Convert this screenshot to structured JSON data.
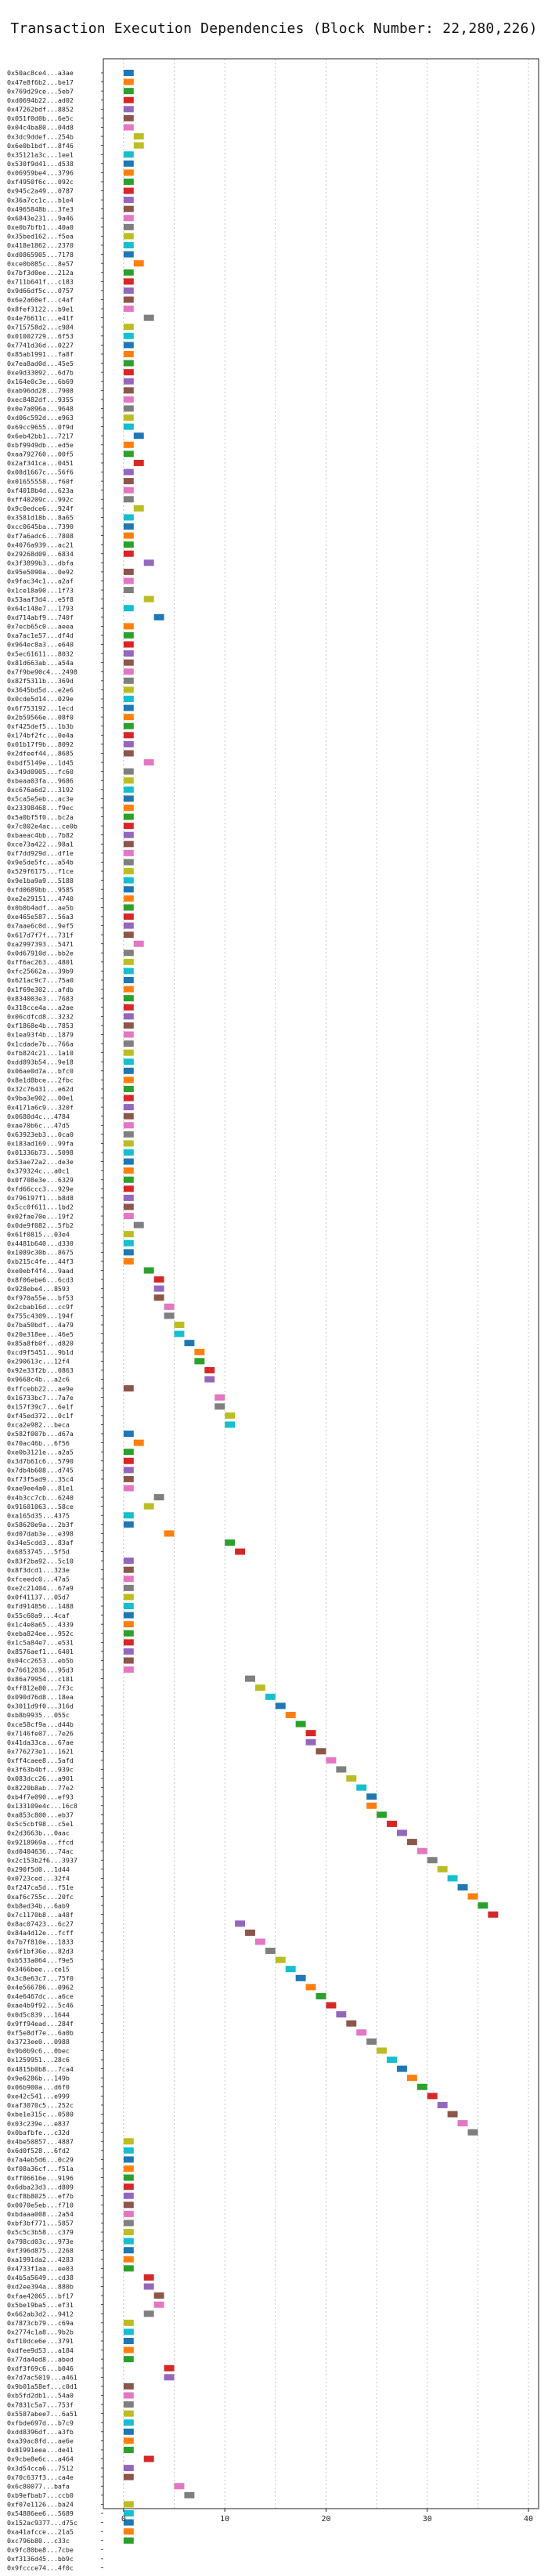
{
  "chart_data": {
    "type": "bar",
    "orientation": "horizontal",
    "title": "Transaction Execution Dependencies (Block Number: 22,280,226)",
    "xlabel": "",
    "ylabel": "",
    "grid": true,
    "xlim": [
      -2,
      41
    ],
    "xticks": [
      0,
      10,
      20,
      30,
      40
    ],
    "bar_width": 1,
    "palette": [
      "#1f77b4",
      "#ff7f0e",
      "#2ca02c",
      "#d62728",
      "#9467bd",
      "#8c564b",
      "#e377c2",
      "#7f7f7f",
      "#bcbd22",
      "#17becf"
    ],
    "transactions": [
      "0x50ac8ce4...a3ae",
      "0x47e8f6b2...be17",
      "0x769d29ce...5eb7",
      "0xd0694b22...ad02",
      "0x47262bdf...8852",
      "0x051f0d0b...6e5c",
      "0x04c4ba80...04d8",
      "0x3dc9ddef...254b",
      "0x6e0b1bdf...8f46",
      "0x35121a3c...1ee1",
      "0x530f9d41...d538",
      "0x06959be4...3796",
      "0xf4950f6c...092c",
      "0x945c2a49...0787",
      "0x36a7cc1c...b1e4",
      "0x4965848b...3fe3",
      "0x6843e231...9a46",
      "0xe0b7bfb1...40a0",
      "0x35bed162...f5ea",
      "0x418e1862...2370",
      "0xd0865905...7178",
      "0xce0b085c...8e57",
      "0x7bf3d0ee...212a",
      "0x711b641f...c183",
      "0x9d66df5c...0757",
      "0x6e2a60ef...c4af",
      "0x8fef3122...b9e1",
      "0x4e76611c...e41f",
      "0x715758d2...c984",
      "0x01002729...6f53",
      "0x7741d36d...0227",
      "0x85ab1991...fa8f",
      "0x7ea8ad0d...45e5",
      "0xe9d33092...6d7b",
      "0x164e0c3e...6b69",
      "0xab96dd28...7908",
      "0xec8482df...9355",
      "0x0e7a096a...9648",
      "0xd06c592d...e963",
      "0x69cc9655...0f9d",
      "0x6eb42bb1...7217",
      "0xbf9949db...ed5e",
      "0xaa792760...00f5",
      "0x2af341ca...0451",
      "0x08d1667c...56f6",
      "0x01655558...f60f",
      "0xf4018b4d...623a",
      "0xff40209c...992c",
      "0x9c0edce6...924f",
      "0x3581d18b...8a65",
      "0xcc0645ba...7390",
      "0xf7a6adc6...7808",
      "0x4076a939...ac21",
      "0x29268d09...6834",
      "0x3f3899b3...dbfa",
      "0x95e5090a...0e92",
      "0x9fac34c1...a2af",
      "0x1ce18a90...1f73",
      "0x53aaf3d4...e5f8",
      "0x64c148e7...1793",
      "0xd714abf9...740f",
      "0x7ecb65c0...aeea",
      "0xa7ac1e57...df4d",
      "0x964ec8a3...e640",
      "0x5ec61611...8032",
      "0x81d663ab...a54a",
      "0x7f9be90c4...2498",
      "0x82f5311b...369d",
      "0x3645bd5d...e2e6",
      "0x0cde5d14...029e",
      "0x6f753192...1ecd",
      "0x2b59566e...08f0",
      "0xf425def5...1b3b",
      "0x174bf2fc...0e4a",
      "0x01b17f9b...8092",
      "0x2dfeef44...8685",
      "0xbdf5149e...1d45",
      "0x349d0905...fc60",
      "0xbeaa03fa...9686",
      "0xc676a6d2...3192",
      "0x5ca5e5eb...ac3e",
      "0x23398468...f9ec",
      "0x5a0bf5f0...bc2a",
      "0x7c802e4ac...ce0b",
      "0xbaeac4bb...7b82",
      "0xce73a422...98a1",
      "0xf7dd929d...df1e",
      "0x9e5de5fc...a54b",
      "0x529f6175...f1ce",
      "0x9e1ba9a9...5188",
      "0xfd0689bb...9585",
      "0xe2e29151...4740",
      "0x0b0b4adf...ae5b",
      "0xe465e587...56a3",
      "0x7aae6c0d...9ef5",
      "0x617d7f7f...731f",
      "0xa2997393...5471",
      "0x0d67910d...bb2e",
      "0xff6ac263...4801",
      "0xfc25662a...39b9",
      "0x621ac9c7...75a0",
      "0x1f69e302...afdb",
      "0x834003e3...7683",
      "0x318cce4a...a2ae",
      "0x06cdfcd8...3232",
      "0xf1868e4b...7853",
      "0x1ea93f4b...1879",
      "0x1cdade7b...766a",
      "0xfb824c21...1a10",
      "0xdd893b54...9e18",
      "0x06ae0d7a...bfc0",
      "0x8e1d8bce...2fbc",
      "0x32c76431...e62d",
      "0x9ba3e902...00e1",
      "0x4171a6c9...320f",
      "0x0680d4c...4784",
      "0xae70b6c...47d5",
      "0x63923eb3...0ca0",
      "0x183ad169...99fa",
      "0x01336b73...5098",
      "0x53ae72a2...de3e",
      "0x379324c...a0c1",
      "0x0f708e3e...6329",
      "0xfd66ccc3...929e",
      "0x796197f1...b8d8",
      "0x5cc0f611...1bd2",
      "0x02fae70e...19f2",
      "0x0de9f082...5fb2",
      "0x61f0815...03e4",
      "0x4481b640...d330",
      "0x1089c30b...8675",
      "0xb215c4fe...44f3",
      "0xe0ebf4f4...9aad",
      "0x8f06ebe6...6cd3",
      "0x928ebe4...8593",
      "0xf970a55e...bf53",
      "0x2cbab16d...cc9f",
      "0x755c4309...194f",
      "0x7ba50bdf...4a79",
      "0x20e318ee...46e5",
      "0x85a8fb0f...d820",
      "0xcd9f5451...9b1d",
      "0x290613c...12f4",
      "0x92e33f2b...0863",
      "0x9668c4b...a2c6",
      "0xffcebb22...ae9e",
      "0x16733bc7...7a7e",
      "0x157f39c7...6e1f",
      "0xf45ed372...0c1f",
      "0xca2e982...beca",
      "0x582f007b...d67a",
      "0x70ac46b...6f56",
      "0xe0b3121e...a2a5",
      "0x3d7b61c6...5790",
      "0x7db4b608...d745",
      "0xf73f5ad9...35c4",
      "0xae9ee4a0...81e1",
      "0x4b3cc7cb...6240",
      "0x91601063...58ce",
      "0xa165d35...4375",
      "0x58620e9a...2b3f",
      "0xd07dab3e...e398",
      "0x34e5cdd3...83af",
      "0x6853745...5f5d",
      "0x83f2ba92...5c10",
      "0x8f3dcd1...323e",
      "0xfceedc0...47a5",
      "0xe2c21404...67a9",
      "0x0f41137...05d7",
      "0xfd914856...1488",
      "0x55c60a9...4caf",
      "0x1c4e0a65...4339",
      "0xeba824ee...952c",
      "0x1c5a84e7...e531",
      "0x8576aef1...6401",
      "0x04cc2653...eb5b",
      "0x76612036...95d3",
      "0x86a79954...c181",
      "0xff812e80...7f3c",
      "0x090d76d8...18ea",
      "0x3011d9f0...316d",
      "0xb8b9935...055c",
      "0xce58cf9a...d44b",
      "0x7146fe07...7e26",
      "0x41da33ca...67ae",
      "0x776273e1...1621",
      "0xff4caee8...5afd",
      "0x3f63b4bf...939c",
      "0x083dcc26...a901",
      "0x8220b8ab...77e2",
      "0xb4f7e090...ef93",
      "0x133109e4c...16c8",
      "0xa853c800...eb37",
      "0x5c5cbf98...c5e1",
      "0x2d3663b...0aac",
      "0x9218969a...ffcd",
      "0xd0404636...74ac",
      "0x2c153b2f6...3937",
      "0x290f5d0...1d44",
      "0x0723ced...32f4",
      "0xf247ca5d...f51e",
      "0xaf6c755c...20fc",
      "0xb8ed34b...6ab9",
      "0x7c1170b8...a48f",
      "0x8ac07423...6c27",
      "0x84a4d12e...fcff",
      "0x7b7f810e...1833",
      "0x6f1bf36e...82d3",
      "0xb533a064...f9e5",
      "0x3466bee...ce15",
      "0x3c8e63c7...75f0",
      "0x4e566786...0962",
      "0x4e6467dc...a6ce",
      "0xae4b9f92...5c46",
      "0x0d5c839...1644",
      "0x9ff94ead...284f",
      "0xf5e8df7e...6a0b",
      "0x3723ee0...0988",
      "0x9b0b9c6...0bec",
      "0x1259951...28c6",
      "0x4815b0b8...7ca4",
      "0x9e6286b...149b",
      "0x06b900a...d6f0",
      "0xe42c541...e999",
      "0xaf3070c5...252c",
      "0xbe1e315c...0580",
      "0x03c239e...e837",
      "0x0bafbfe...c32d",
      "0x4be50857...4887",
      "0x6d0f528...6fd2",
      "0x7a4eb5d6...0c29",
      "0xf08a36cf...f51a",
      "0xff06616e...9196",
      "0x6dba23d3...d809",
      "0xcf8b8025...ef7b",
      "0x0070e5eb...f710",
      "0xbdaaa008...2a54",
      "0xbf3bf771...5857",
      "0x5c5c3b58...c379",
      "0x798cd03c...973e",
      "0xf396d875...2268",
      "0xa1991da2...4283",
      "0x4733f1aa...ee03",
      "0x4b5a5649...cd38",
      "0xd2ee394a...880b",
      "0xfae42065...bf17",
      "0x5be19ba5...ef31",
      "0x662ab3d2...9412",
      "0x7873cb79...c69a",
      "0x2774c1a8...9b2b",
      "0xf10dce6e...3791",
      "0xdfee9d53...a184",
      "0x77da4ed8...abed",
      "0xdf3f69c6...b046",
      "0x7d7ac5019...a461",
      "0x9b01a58ef...c0d1",
      "0xb5fd2db1...54a0",
      "0x7831c5a7...753f",
      "0x5587abee7...6a51",
      "0xfbde697d...b7c9",
      "0xdd8396df...a3fb",
      "0xa39ac8fd...ae6e",
      "0x81991eea...de41",
      "0x9cbe8e6c...a464",
      "0x3d54cca6...7512",
      "0x70c637f3...ca4e",
      "0x6c80077...bafa",
      "0xb9efbab7...ccb0",
      "0xf07e1126...ba24",
      "0x54886ee6...5689",
      "0x152ac9377...d75c",
      "0xa41afcce...21a5",
      "0xc796b80...c33c",
      "0x9fc80be8...7cbe",
      "0xf3136d45...bb9c",
      "0x9fccce74...4f0c"
    ],
    "starts": [
      0,
      0,
      0,
      0,
      0,
      0,
      0,
      1,
      1,
      0,
      0,
      0,
      0,
      0,
      0,
      0,
      0,
      0,
      0,
      0,
      0,
      1,
      0,
      0,
      0,
      0,
      0,
      2,
      0,
      0,
      0,
      0,
      0,
      0,
      0,
      0,
      0,
      0,
      0,
      0,
      1,
      0,
      0,
      1,
      0,
      0,
      0,
      0,
      1,
      0,
      0,
      0,
      0,
      0,
      2,
      0,
      0,
      0,
      2,
      0,
      3,
      0,
      0,
      0,
      0,
      0,
      0,
      0,
      0,
      0,
      0,
      0,
      0,
      0,
      0,
      0,
      2,
      0,
      0,
      0,
      0,
      0,
      0,
      0,
      0,
      0,
      0,
      0,
      0,
      0,
      0,
      0,
      0,
      0,
      0,
      0,
      1,
      0,
      0,
      0,
      0,
      0,
      0,
      0,
      0,
      0,
      0,
      0,
      0,
      0,
      0,
      0,
      0,
      0,
      0,
      0,
      0,
      0,
      0,
      0,
      0,
      0,
      0,
      0,
      0,
      0,
      0,
      1,
      0,
      0,
      0,
      0,
      2,
      3,
      3,
      3,
      4,
      4,
      5,
      5,
      6,
      7,
      7,
      8,
      8,
      0,
      9,
      9,
      10,
      10,
      0,
      1,
      0,
      0,
      0,
      0,
      0,
      3,
      2,
      0,
      0,
      4,
      10,
      11,
      0,
      0,
      0,
      0,
      0,
      0,
      0,
      0,
      0,
      0,
      0,
      0,
      0,
      12,
      13,
      14,
      15,
      16,
      17,
      18,
      18,
      19,
      20,
      21,
      22,
      23,
      24,
      24,
      25,
      26,
      27,
      28,
      29,
      30,
      31,
      32,
      33,
      34,
      35,
      36,
      11,
      12,
      13,
      14,
      15,
      16,
      17,
      18,
      19,
      20,
      21,
      22,
      23,
      24,
      25,
      26,
      27,
      28,
      29,
      30,
      31,
      32,
      33,
      34,
      0,
      0,
      0,
      0,
      0,
      0,
      0,
      0,
      0,
      0,
      0,
      0,
      0,
      0,
      0,
      2,
      2,
      3,
      3,
      2,
      0,
      0,
      0,
      0,
      0,
      4,
      4,
      0,
      0,
      0,
      0,
      0,
      0,
      0,
      0,
      2,
      0,
      0,
      5,
      6,
      0,
      0,
      0,
      0,
      0
    ],
    "colors": [
      0,
      1,
      2,
      3,
      4,
      5,
      6,
      8,
      8,
      9,
      0,
      1,
      2,
      3,
      4,
      5,
      6,
      7,
      8,
      9,
      0,
      1,
      2,
      3,
      4,
      5,
      6,
      7,
      8,
      9,
      0,
      1,
      2,
      3,
      4,
      5,
      6,
      7,
      8,
      9,
      0,
      1,
      2,
      3,
      4,
      5,
      6,
      7,
      8,
      9,
      0,
      1,
      2,
      3,
      4,
      5,
      6,
      7,
      8,
      9,
      0,
      1,
      2,
      3,
      4,
      5,
      6,
      7,
      8,
      9,
      0,
      1,
      2,
      3,
      4,
      5,
      6,
      7,
      8,
      9,
      0,
      1,
      2,
      3,
      4,
      5,
      6,
      7,
      8,
      9,
      0,
      1,
      2,
      3,
      4,
      5,
      6,
      7,
      8,
      9,
      0,
      1,
      2,
      3,
      4,
      5,
      6,
      7,
      8,
      9,
      0,
      1,
      2,
      3,
      4,
      5,
      6,
      7,
      8,
      9,
      0,
      1,
      2,
      3,
      4,
      5,
      6,
      7,
      8,
      9,
      0,
      1,
      2,
      3,
      4,
      5,
      6,
      7,
      8,
      9,
      0,
      1,
      2,
      3,
      4,
      5,
      6,
      7,
      8,
      9,
      0,
      1,
      2,
      3,
      4,
      5,
      6,
      7,
      8,
      9,
      0,
      1,
      2,
      3,
      4,
      5,
      6,
      7,
      8,
      9,
      0,
      1,
      2,
      3,
      4,
      5,
      6,
      7,
      8,
      9,
      0,
      1,
      2,
      3,
      4,
      5,
      6,
      7,
      8,
      9,
      0,
      1,
      2,
      3,
      4,
      5,
      6,
      7,
      8,
      9,
      0,
      1,
      2,
      3,
      4,
      5,
      6,
      7,
      8,
      9,
      0,
      1,
      2,
      3,
      4,
      5,
      6,
      7,
      8,
      9,
      0,
      1,
      2,
      3,
      4,
      5,
      6,
      7,
      8,
      9,
      0,
      1,
      2,
      3,
      4,
      5,
      6,
      7,
      8,
      9,
      0,
      1,
      2,
      3,
      4,
      5,
      6,
      7,
      8,
      9,
      0,
      1,
      2,
      3,
      4,
      5,
      6,
      7,
      8,
      9,
      0,
      1,
      2,
      3,
      4,
      5,
      6,
      7,
      8,
      9,
      0,
      1,
      2
    ]
  }
}
